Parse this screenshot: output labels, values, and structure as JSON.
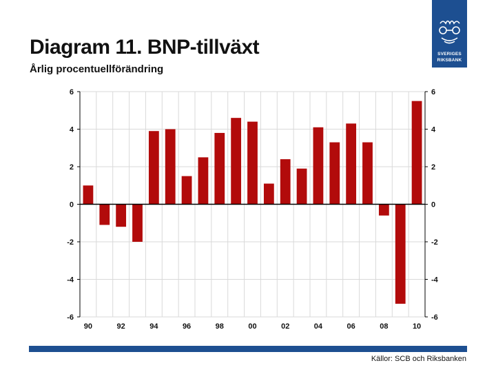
{
  "title": "Diagram 11. BNP-tillväxt",
  "subtitle": "Årlig procentuellförändring",
  "logo": {
    "line1": "SVERIGES",
    "line2": "RIKSBANK"
  },
  "source": "Källor: SCB och Riksbanken",
  "colors": {
    "bar": "#b20b0b",
    "brand": "#1d4f91",
    "grid": "#d9d9d9",
    "axis": "#000000"
  },
  "chart_data": {
    "type": "bar",
    "title": "Diagram 11. BNP-tillväxt",
    "ylabel": "Årlig procentuellförändring",
    "x": [
      1990,
      1991,
      1992,
      1993,
      1994,
      1995,
      1996,
      1997,
      1998,
      1999,
      2000,
      2001,
      2002,
      2003,
      2004,
      2005,
      2006,
      2007,
      2008,
      2009,
      2010
    ],
    "values": [
      1.0,
      -1.1,
      -1.2,
      -2.0,
      3.9,
      4.0,
      1.5,
      2.5,
      3.8,
      4.6,
      4.4,
      1.1,
      2.4,
      1.9,
      4.1,
      3.3,
      4.3,
      3.3,
      -0.6,
      -5.3,
      5.5
    ],
    "xtick_labels": [
      "90",
      "92",
      "94",
      "96",
      "98",
      "00",
      "02",
      "04",
      "06",
      "08",
      "10"
    ],
    "yticks": [
      6,
      4,
      2,
      0,
      -2,
      -4,
      -6
    ],
    "ylim": [
      -6,
      6
    ],
    "grid": true,
    "y_axis_both_sides": true
  }
}
